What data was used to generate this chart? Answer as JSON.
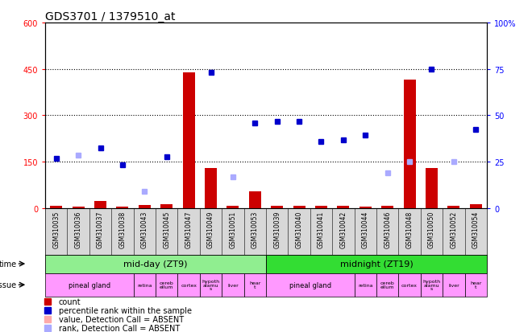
{
  "title": "GDS3701 / 1379510_at",
  "samples": [
    "GSM310035",
    "GSM310036",
    "GSM310037",
    "GSM310038",
    "GSM310043",
    "GSM310045",
    "GSM310047",
    "GSM310049",
    "GSM310051",
    "GSM310053",
    "GSM310039",
    "GSM310040",
    "GSM310041",
    "GSM310042",
    "GSM310044",
    "GSM310046",
    "GSM310048",
    "GSM310050",
    "GSM310052",
    "GSM310054"
  ],
  "count_values": [
    8,
    5,
    22,
    4,
    10,
    12,
    440,
    130,
    8,
    55,
    8,
    8,
    8,
    8,
    5,
    8,
    415,
    130,
    8,
    12
  ],
  "rank_values": [
    160,
    null,
    195,
    140,
    null,
    165,
    null,
    440,
    null,
    275,
    280,
    280,
    215,
    220,
    235,
    null,
    null,
    450,
    null,
    255
  ],
  "absent_rank_values": [
    null,
    170,
    null,
    null,
    55,
    null,
    null,
    null,
    100,
    null,
    null,
    null,
    null,
    null,
    null,
    115,
    150,
    null,
    150,
    null
  ],
  "absent_count_values": [
    null,
    null,
    null,
    null,
    null,
    null,
    null,
    null,
    null,
    null,
    null,
    null,
    null,
    null,
    null,
    null,
    null,
    null,
    null,
    null
  ],
  "ylim_left": [
    0,
    600
  ],
  "ylim_right": [
    0,
    100
  ],
  "yticks_left": [
    0,
    150,
    300,
    450,
    600
  ],
  "yticks_right": [
    0,
    25,
    50,
    75,
    100
  ],
  "time_groups": [
    {
      "label": "mid-day (ZT9)",
      "start": 0,
      "end": 9,
      "color": "#90ee90"
    },
    {
      "label": "midnight (ZT19)",
      "start": 10,
      "end": 19,
      "color": "#33dd33"
    }
  ],
  "tissue_groups": [
    {
      "label": "pineal gland",
      "start": 0,
      "end": 3
    },
    {
      "label": "retina",
      "start": 4,
      "end": 4
    },
    {
      "label": "cereb\nellum",
      "start": 5,
      "end": 5
    },
    {
      "label": "cortex",
      "start": 6,
      "end": 6
    },
    {
      "label": "hypoth\nalamu\ns",
      "start": 7,
      "end": 7
    },
    {
      "label": "liver",
      "start": 8,
      "end": 8
    },
    {
      "label": "hear\nt",
      "start": 9,
      "end": 9
    },
    {
      "label": "pineal gland",
      "start": 10,
      "end": 13
    },
    {
      "label": "retina",
      "start": 14,
      "end": 14
    },
    {
      "label": "cereb\nellum",
      "start": 15,
      "end": 15
    },
    {
      "label": "cortex",
      "start": 16,
      "end": 16
    },
    {
      "label": "hypoth\nalamu\ns",
      "start": 17,
      "end": 17
    },
    {
      "label": "liver",
      "start": 18,
      "end": 18
    },
    {
      "label": "hear\nt",
      "start": 19,
      "end": 19
    }
  ],
  "tissue_color": "#ff99ff",
  "bar_color": "#cc0000",
  "rank_color": "#0000cc",
  "absent_rank_color": "#aaaaff",
  "absent_count_color": "#ffaaaa",
  "bg_color": "white",
  "xtick_bg": "#d8d8d8",
  "title_fontsize": 10,
  "tick_fontsize": 7,
  "xtick_fontsize": 5.5
}
